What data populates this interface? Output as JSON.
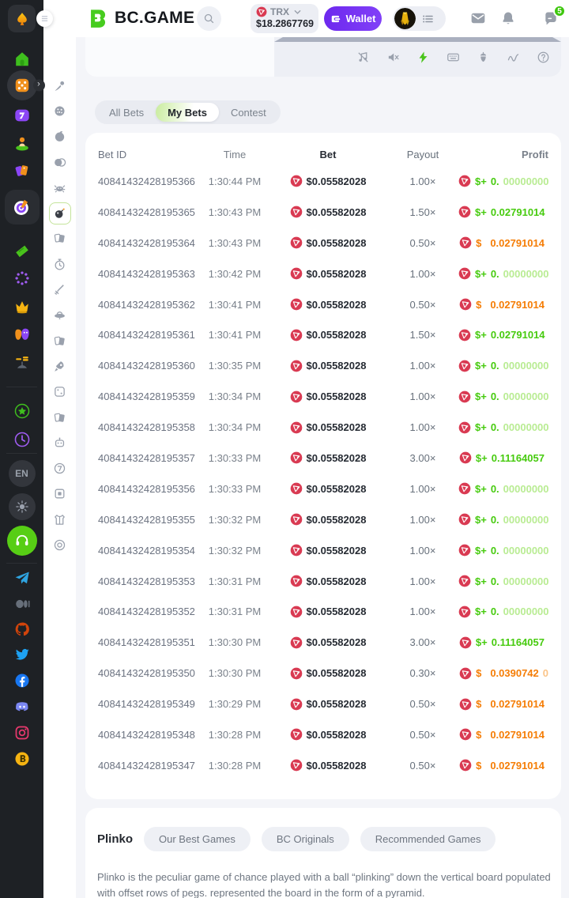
{
  "colors": {
    "accent_green": "#47cb0f",
    "faded_green": "#b9ec93",
    "loss_orange": "#f57d05",
    "wallet_purple": "#7634f4",
    "trx_red": "#d93a52",
    "badge_green": "#3ec70e"
  },
  "header": {
    "logo_text": "BC.GAME",
    "balance": {
      "currency": "TRX",
      "amount": "$18.2867769"
    },
    "wallet_label": "Wallet",
    "chat_badge": "5"
  },
  "sidebar": {
    "items": [
      {
        "name": "home",
        "icon": "home"
      },
      {
        "name": "casino",
        "icon": "dice",
        "active": true,
        "expand": true
      },
      {
        "name": "slots",
        "icon": "slot-seven"
      },
      {
        "name": "live-casino",
        "icon": "person"
      },
      {
        "name": "promotions",
        "icon": "tags"
      },
      {
        "name": "lottery",
        "icon": "target",
        "wrap": "sq"
      },
      {
        "name": "sports",
        "icon": "ticket"
      },
      {
        "name": "bonus",
        "icon": "dot-ring"
      },
      {
        "name": "vip-club",
        "icon": "crown"
      },
      {
        "name": "affiliate",
        "icon": "masks"
      },
      {
        "name": "staking",
        "icon": "coins-stand"
      },
      {
        "name": "favorites",
        "icon": "star-ring"
      },
      {
        "name": "recent",
        "icon": "clock-ring"
      },
      {
        "name": "language",
        "label": "EN",
        "wrap": "circ"
      },
      {
        "name": "theme",
        "icon": "sun",
        "wrap": "circ"
      },
      {
        "name": "support",
        "icon": "headset",
        "wrap": "circ-green"
      },
      {
        "name": "telegram",
        "icon": "telegram"
      },
      {
        "name": "medium",
        "icon": "medium"
      },
      {
        "name": "github",
        "icon": "github"
      },
      {
        "name": "twitter",
        "icon": "twitter"
      },
      {
        "name": "facebook",
        "icon": "facebook"
      },
      {
        "name": "discord",
        "icon": "discord"
      },
      {
        "name": "instagram",
        "icon": "instagram"
      },
      {
        "name": "bitcointalk",
        "icon": "bitcoin"
      }
    ]
  },
  "games_rail": {
    "items": [
      {
        "name": "comet",
        "icon": "comet"
      },
      {
        "name": "dotted-ball",
        "icon": "holey-ball"
      },
      {
        "name": "ball",
        "icon": "ball"
      },
      {
        "name": "twin-coins",
        "icon": "coins-pair"
      },
      {
        "name": "crab",
        "icon": "crab"
      },
      {
        "name": "plinko-bomb",
        "icon": "bomb",
        "active": true
      },
      {
        "name": "cards",
        "icon": "cards"
      },
      {
        "name": "stopwatch",
        "icon": "stopwatch"
      },
      {
        "name": "dagger",
        "icon": "dagger"
      },
      {
        "name": "saucer",
        "icon": "saucer"
      },
      {
        "name": "cards-2",
        "icon": "cards"
      },
      {
        "name": "rocket",
        "icon": "rocket"
      },
      {
        "name": "die",
        "icon": "die"
      },
      {
        "name": "cards-3",
        "icon": "cards"
      },
      {
        "name": "robot",
        "icon": "robot"
      },
      {
        "name": "seven-slot",
        "icon": "seven-badge"
      },
      {
        "name": "box",
        "icon": "box"
      },
      {
        "name": "vest",
        "icon": "vest"
      },
      {
        "name": "ring",
        "icon": "ring"
      }
    ]
  },
  "game_panel": {
    "icons": [
      "music-off",
      "sound-off",
      "turbo-bolt",
      "hotkeys-keyboard",
      "seed",
      "live-stats",
      "help"
    ]
  },
  "tabs": {
    "items": [
      {
        "label": "All Bets",
        "active": false
      },
      {
        "label": "My Bets",
        "active": true
      },
      {
        "label": "Contest",
        "active": false
      }
    ]
  },
  "table": {
    "columns": [
      "Bet ID",
      "Time",
      "Bet",
      "Payout",
      "Profit"
    ],
    "rows": [
      {
        "id": "40841432428195366",
        "time": "1:30:44 PM",
        "bet": "$0.05582028",
        "payout": "1.00×",
        "result": "win",
        "profit": {
          "pre": "$+",
          "main": "0.",
          "faded": "00000000"
        }
      },
      {
        "id": "40841432428195365",
        "time": "1:30:43 PM",
        "bet": "$0.05582028",
        "payout": "1.50×",
        "result": "win",
        "profit": {
          "pre": "$+",
          "main": "0.02791014",
          "faded": ""
        }
      },
      {
        "id": "40841432428195364",
        "time": "1:30:43 PM",
        "bet": "$0.05582028",
        "payout": "0.50×",
        "result": "loss",
        "profit": {
          "pre": "$",
          "main": "0.02791014",
          "faded": ""
        }
      },
      {
        "id": "40841432428195363",
        "time": "1:30:42 PM",
        "bet": "$0.05582028",
        "payout": "1.00×",
        "result": "win",
        "profit": {
          "pre": "$+",
          "main": "0.",
          "faded": "00000000"
        }
      },
      {
        "id": "40841432428195362",
        "time": "1:30:41 PM",
        "bet": "$0.05582028",
        "payout": "0.50×",
        "result": "loss",
        "profit": {
          "pre": "$",
          "main": "0.02791014",
          "faded": ""
        }
      },
      {
        "id": "40841432428195361",
        "time": "1:30:41 PM",
        "bet": "$0.05582028",
        "payout": "1.50×",
        "result": "win",
        "profit": {
          "pre": "$+",
          "main": "0.02791014",
          "faded": ""
        }
      },
      {
        "id": "40841432428195360",
        "time": "1:30:35 PM",
        "bet": "$0.05582028",
        "payout": "1.00×",
        "result": "win",
        "profit": {
          "pre": "$+",
          "main": "0.",
          "faded": "00000000"
        }
      },
      {
        "id": "40841432428195359",
        "time": "1:30:34 PM",
        "bet": "$0.05582028",
        "payout": "1.00×",
        "result": "win",
        "profit": {
          "pre": "$+",
          "main": "0.",
          "faded": "00000000"
        }
      },
      {
        "id": "40841432428195358",
        "time": "1:30:34 PM",
        "bet": "$0.05582028",
        "payout": "1.00×",
        "result": "win",
        "profit": {
          "pre": "$+",
          "main": "0.",
          "faded": "00000000"
        }
      },
      {
        "id": "40841432428195357",
        "time": "1:30:33 PM",
        "bet": "$0.05582028",
        "payout": "3.00×",
        "result": "win",
        "profit": {
          "pre": "$+",
          "main": "0.11164057",
          "faded": ""
        }
      },
      {
        "id": "40841432428195356",
        "time": "1:30:33 PM",
        "bet": "$0.05582028",
        "payout": "1.00×",
        "result": "win",
        "profit": {
          "pre": "$+",
          "main": "0.",
          "faded": "00000000"
        }
      },
      {
        "id": "40841432428195355",
        "time": "1:30:32 PM",
        "bet": "$0.05582028",
        "payout": "1.00×",
        "result": "win",
        "profit": {
          "pre": "$+",
          "main": "0.",
          "faded": "00000000"
        }
      },
      {
        "id": "40841432428195354",
        "time": "1:30:32 PM",
        "bet": "$0.05582028",
        "payout": "1.00×",
        "result": "win",
        "profit": {
          "pre": "$+",
          "main": "0.",
          "faded": "00000000"
        }
      },
      {
        "id": "40841432428195353",
        "time": "1:30:31 PM",
        "bet": "$0.05582028",
        "payout": "1.00×",
        "result": "win",
        "profit": {
          "pre": "$+",
          "main": "0.",
          "faded": "00000000"
        }
      },
      {
        "id": "40841432428195352",
        "time": "1:30:31 PM",
        "bet": "$0.05582028",
        "payout": "1.00×",
        "result": "win",
        "profit": {
          "pre": "$+",
          "main": "0.",
          "faded": "00000000"
        }
      },
      {
        "id": "40841432428195351",
        "time": "1:30:30 PM",
        "bet": "$0.05582028",
        "payout": "3.00×",
        "result": "win",
        "profit": {
          "pre": "$+",
          "main": "0.11164057",
          "faded": ""
        }
      },
      {
        "id": "40841432428195350",
        "time": "1:30:30 PM",
        "bet": "$0.05582028",
        "payout": "0.30×",
        "result": "loss",
        "profit": {
          "pre": "$",
          "main": "0.0390742",
          "faded": "0"
        }
      },
      {
        "id": "40841432428195349",
        "time": "1:30:29 PM",
        "bet": "$0.05582028",
        "payout": "0.50×",
        "result": "loss",
        "profit": {
          "pre": "$",
          "main": "0.02791014",
          "faded": ""
        }
      },
      {
        "id": "40841432428195348",
        "time": "1:30:28 PM",
        "bet": "$0.05582028",
        "payout": "0.50×",
        "result": "loss",
        "profit": {
          "pre": "$",
          "main": "0.02791014",
          "faded": ""
        }
      },
      {
        "id": "40841432428195347",
        "time": "1:30:28 PM",
        "bet": "$0.05582028",
        "payout": "0.50×",
        "result": "loss",
        "profit": {
          "pre": "$",
          "main": "0.02791014",
          "faded": ""
        }
      }
    ]
  },
  "info_card": {
    "title": "Plinko",
    "tags": [
      "Our Best Games",
      "BC Originals",
      "Recommended Games"
    ],
    "description": "Plinko is the peculiar game of chance played with a ball “plinking” down the vertical board populated with offset rows of pegs. represented the board in the form of a pyramid."
  }
}
